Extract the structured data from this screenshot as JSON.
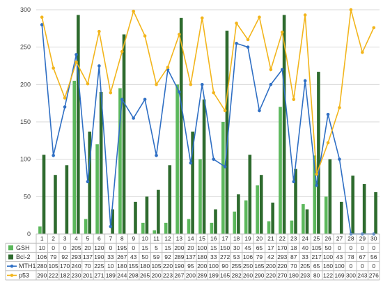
{
  "chart_data": {
    "type": "bar",
    "x": [
      1,
      2,
      3,
      4,
      5,
      6,
      7,
      8,
      9,
      10,
      11,
      12,
      13,
      14,
      15,
      16,
      17,
      18,
      19,
      20,
      21,
      22,
      23,
      24,
      25,
      26,
      27,
      28,
      29,
      30
    ],
    "ylim": [
      0,
      300
    ],
    "yticks": [
      0,
      50,
      100,
      150,
      200,
      250,
      300
    ],
    "grid": true,
    "legend": "data-table-left",
    "series": [
      {
        "name": "GSH",
        "kind": "bar",
        "color": "#5cb85c",
        "values": [
          10,
          0,
          0,
          205,
          20,
          120,
          0,
          195,
          0,
          15,
          5,
          15,
          200,
          20,
          100,
          15,
          150,
          30,
          45,
          65,
          17,
          170,
          18,
          40,
          105,
          50,
          0,
          0,
          0,
          0
        ]
      },
      {
        "name": "Bcl-2",
        "kind": "bar",
        "color": "#2e6b2e",
        "values": [
          106,
          79,
          92,
          293,
          137,
          190,
          33,
          267,
          43,
          50,
          59,
          92,
          289,
          137,
          180,
          33,
          272,
          53,
          106,
          79,
          42,
          293,
          87,
          33,
          217,
          100,
          43,
          78,
          67,
          56
        ]
      },
      {
        "name": "MTH1",
        "kind": "line",
        "color": "#2f6fc4",
        "values": [
          280,
          105,
          170,
          240,
          70,
          225,
          10,
          180,
          155,
          180,
          105,
          220,
          190,
          95,
          200,
          100,
          90,
          255,
          250,
          165,
          200,
          220,
          70,
          205,
          65,
          160,
          100,
          0,
          0,
          0
        ]
      },
      {
        "name": "p53",
        "kind": "line",
        "color": "#f2b51c",
        "values": [
          290,
          222,
          182,
          230,
          201,
          271,
          189,
          244,
          298,
          265,
          200,
          223,
          267,
          200,
          289,
          189,
          165,
          282,
          260,
          290,
          220,
          270,
          180,
          293,
          80,
          122,
          169,
          300,
          243,
          276
        ]
      }
    ]
  }
}
